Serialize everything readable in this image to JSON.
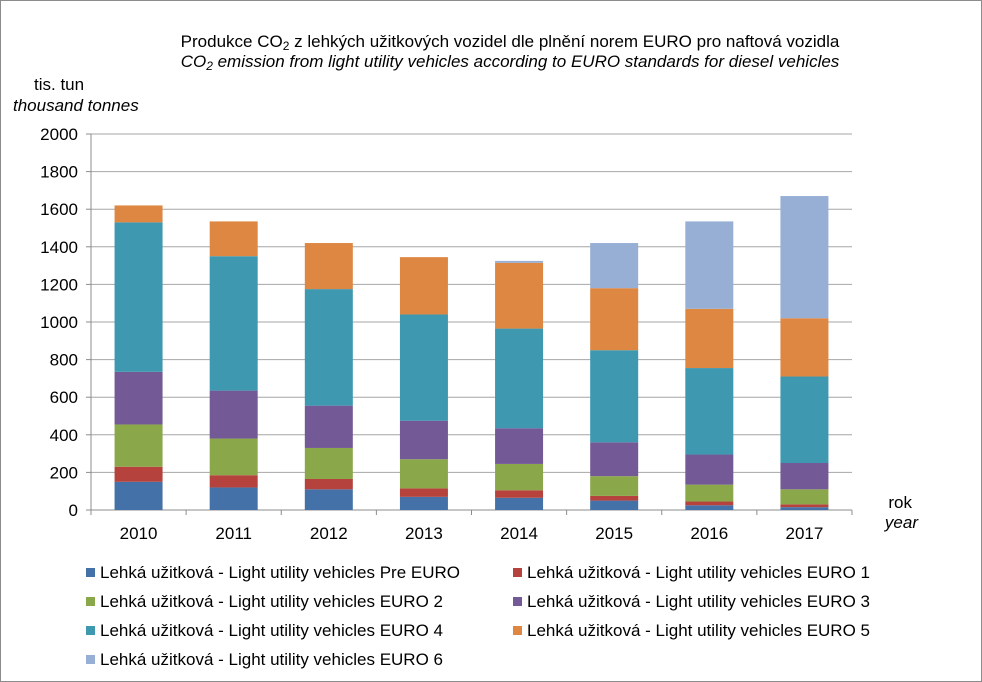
{
  "title": {
    "line1_pre": "Produkce CO",
    "line1_sub": "2",
    "line1_post": " z lehkých užitkových  vozidel dle plnění norem EURO pro naftová vozidla",
    "line2_pre": "CO",
    "line2_sub": "2",
    "line2_post": " emission from light utility vehicles according to EURO standards for diesel vehicles"
  },
  "axis": {
    "ylabel_cz": "tis. tun",
    "ylabel_en": "thousand tonnes",
    "xlabel_cz": "rok",
    "xlabel_en": "year"
  },
  "chart_data": {
    "type": "bar",
    "stacked": true,
    "title": "Produkce CO2 z lehkých užitkových vozidel dle plnění norem EURO pro naftová vozidla / CO2 emission from light utility vehicles according to EURO standards for diesel vehicles",
    "categories": [
      "2010",
      "2011",
      "2012",
      "2013",
      "2014",
      "2015",
      "2016",
      "2017"
    ],
    "ylim": [
      0,
      2000
    ],
    "yticks": [
      0,
      200,
      400,
      600,
      800,
      1000,
      1200,
      1400,
      1600,
      1800,
      2000
    ],
    "grid": true,
    "legend_position": "bottom",
    "series": [
      {
        "name": "Lehká užitková - Light utility vehicles Pre EURO",
        "color": "#4472a8",
        "values": [
          150,
          120,
          110,
          70,
          65,
          50,
          25,
          15
        ]
      },
      {
        "name": "Lehká užitková - Light utility vehicles EURO 1",
        "color": "#b5423c",
        "values": [
          80,
          65,
          55,
          45,
          40,
          25,
          20,
          15
        ]
      },
      {
        "name": "Lehká užitková - Light utility vehicles EURO 2",
        "color": "#8aa74a",
        "values": [
          225,
          195,
          165,
          155,
          140,
          105,
          90,
          80
        ]
      },
      {
        "name": "Lehká užitková - Light utility vehicles EURO 3",
        "color": "#745997",
        "values": [
          280,
          255,
          225,
          205,
          190,
          180,
          160,
          140
        ]
      },
      {
        "name": "Lehká užitková - Light utility vehicles EURO 4",
        "color": "#3d98b0",
        "values": [
          795,
          715,
          620,
          565,
          530,
          490,
          460,
          460
        ]
      },
      {
        "name": "Lehká užitková - Light utility vehicles EURO 5",
        "color": "#de8742",
        "values": [
          90,
          185,
          245,
          305,
          350,
          330,
          315,
          310
        ]
      },
      {
        "name": "Lehká užitková - Light utility vehicles EURO 6",
        "color": "#97afd4",
        "values": [
          0,
          0,
          0,
          0,
          10,
          240,
          465,
          650
        ]
      }
    ]
  }
}
